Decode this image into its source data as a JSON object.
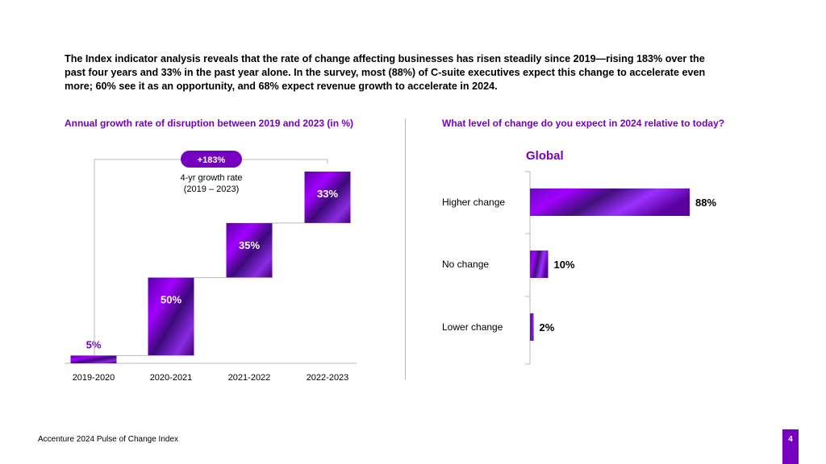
{
  "intro": {
    "text": "The Index indicator analysis reveals that the rate of change affecting businesses has risen steadily since 2019—rising 183% over the past four years and 33% in the past year alone. In the survey, most (88%) of C-suite executives expect this change to accelerate even more; 60% see it as an opportunity, and 68% expect revenue growth to accelerate in 2024."
  },
  "colors": {
    "accent": "#7500c0",
    "bar_light": "#a100ff",
    "bar_dark": "#460073",
    "axis": "#b8b8b8"
  },
  "chart_data": [
    {
      "type": "bar",
      "subtype": "waterfall",
      "title": "Annual growth rate of disruption between 2019 and 2023 (in %)",
      "categories": [
        "2019-2020",
        "2020-2021",
        "2021-2022",
        "2022-2023"
      ],
      "values": [
        5,
        50,
        35,
        33
      ],
      "value_labels": [
        "5%",
        "50%",
        "35%",
        "33%"
      ],
      "unit": "%",
      "ylim": [
        0,
        123
      ],
      "grid": false,
      "annotation": {
        "badge": "+183%",
        "label_line1": "4-yr growth rate",
        "label_line2": "(2019 – 2023)"
      }
    },
    {
      "type": "bar",
      "orientation": "horizontal",
      "title": "What level of change do you expect in 2024 relative to today?",
      "subtitle": "Global",
      "categories": [
        "Higher change",
        "No change",
        "Lower change"
      ],
      "values": [
        88,
        10,
        2
      ],
      "value_labels": [
        "88%",
        "10%",
        "2%"
      ],
      "unit": "%",
      "xlim": [
        0,
        100
      ],
      "grid": false
    }
  ],
  "footer": {
    "source": "Accenture 2024 Pulse of Change Index",
    "page": "4"
  }
}
